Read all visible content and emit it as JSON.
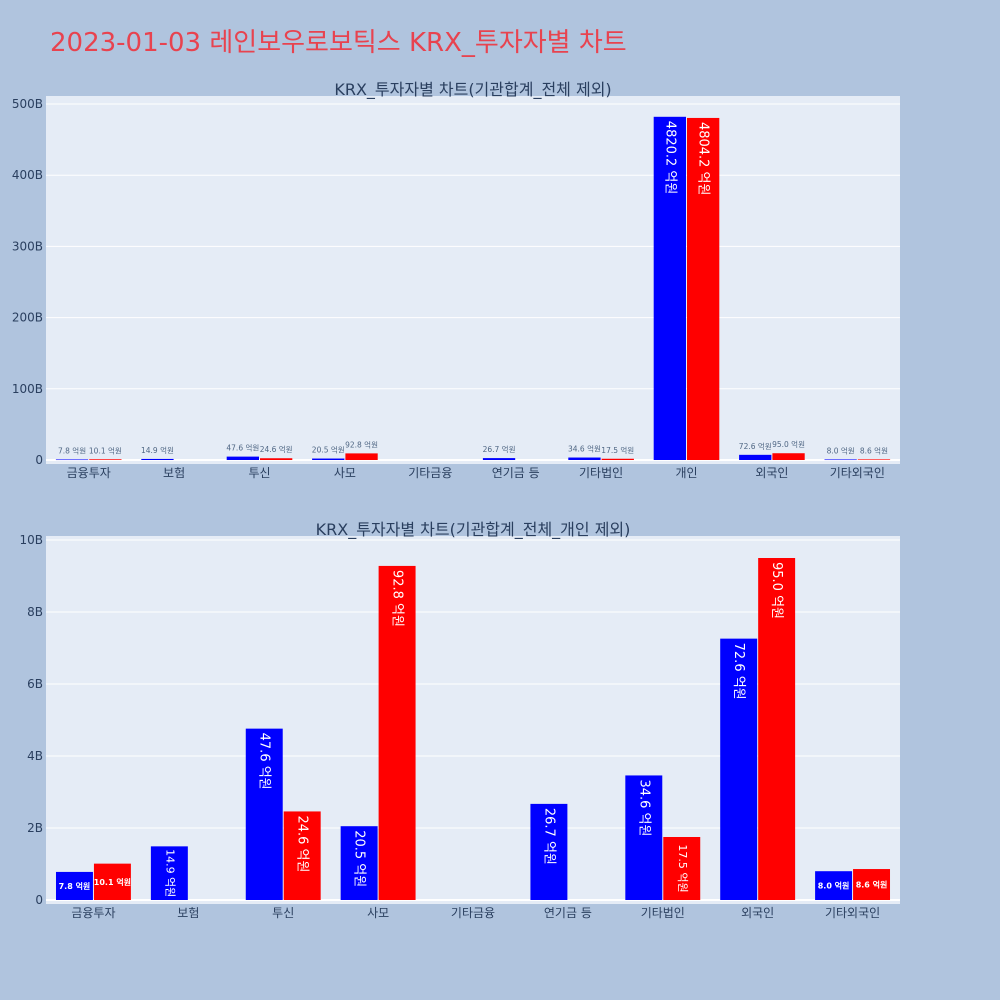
{
  "title": "2023-01-03 레인보우로보틱스 KRX_투자자별 차트",
  "colors": {
    "buy": "#0000ff",
    "sell": "#ff0000",
    "plot_bg": "#e5ecf6",
    "page_bg": "#b0c4de",
    "title": "#e8434f"
  },
  "chart_data": [
    {
      "type": "bar",
      "title": "KRX_투자자별 차트(기관합계_전체 제외)",
      "categories": [
        "금융투자",
        "보험",
        "투신",
        "사모",
        "기타금융",
        "연기금 등",
        "기타법인",
        "개인",
        "외국인",
        "기타외국인"
      ],
      "series": [
        {
          "values": [
            0.78,
            1.49,
            4.76,
            2.05,
            null,
            2.67,
            3.46,
            482.02,
            7.26,
            0.8
          ],
          "labels": [
            "7.8 억원",
            "14.9 억원",
            "47.6 억원",
            "20.5 억원",
            "",
            "26.7 억원",
            "34.6 억원",
            "4820.2 억원",
            "72.6 억원",
            "8.0 억원"
          ]
        },
        {
          "values": [
            1.01,
            null,
            2.46,
            9.28,
            null,
            null,
            1.75,
            480.42,
            9.5,
            0.86
          ],
          "labels": [
            "10.1 억원",
            "",
            "24.6 억원",
            "92.8 억원",
            "",
            "",
            "17.5 억원",
            "4804.2 억원",
            "95.0 억원",
            "8.6 억원"
          ]
        }
      ],
      "yticks": [
        "0",
        "100B",
        "200B",
        "300B",
        "400B",
        "500B"
      ],
      "ylim": [
        0,
        510
      ],
      "grid": true
    },
    {
      "type": "bar",
      "title": "KRX_투자자별 차트(기관합계_전체_개인 제외)",
      "categories": [
        "금융투자",
        "보험",
        "투신",
        "사모",
        "기타금융",
        "연기금 등",
        "기타법인",
        "외국인",
        "기타외국인"
      ],
      "series": [
        {
          "values": [
            0.78,
            1.49,
            4.76,
            2.05,
            null,
            2.67,
            3.46,
            7.26,
            0.8
          ],
          "labels": [
            "7.8 억원",
            "14.9 억원",
            "47.6 억원",
            "20.5 억원",
            "",
            "26.7 억원",
            "34.6 억원",
            "72.6 억원",
            "8.0 억원"
          ]
        },
        {
          "values": [
            1.01,
            null,
            2.46,
            9.28,
            null,
            null,
            1.75,
            9.5,
            0.86
          ],
          "labels": [
            "10.1 억원",
            "",
            "24.6 억원",
            "92.8 억원",
            "",
            "",
            "17.5 억원",
            "95.0 억원",
            "8.6 억원"
          ]
        }
      ],
      "yticks": [
        "0",
        "2B",
        "4B",
        "6B",
        "8B",
        "10B"
      ],
      "ylim": [
        0,
        10.05
      ],
      "grid": true
    }
  ]
}
